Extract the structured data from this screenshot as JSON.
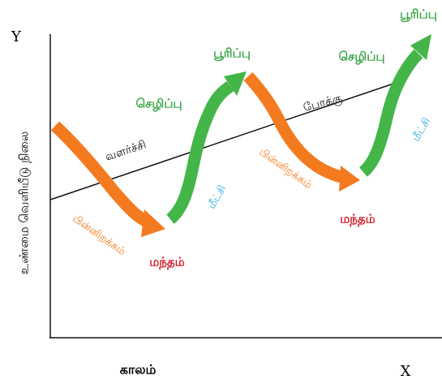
{
  "axes": {
    "y_letter": "Y",
    "x_letter": "X",
    "x_label": "காலம்",
    "y_label": "உண்மை வெளியீடு நிலை"
  },
  "labels": [
    {
      "text": "வளர்ச்சி"
    },
    {
      "text": "போக்கு"
    },
    {
      "text": "பின்னிறக்கம்"
    },
    {
      "text": "மந்தம்"
    },
    {
      "text": "மீட்சி"
    },
    {
      "text": "செழிப்பு"
    },
    {
      "text": "பூரிப்பு"
    },
    {
      "text": "பின்னிறக்கம்"
    },
    {
      "text": "மந்தம்"
    },
    {
      "text": "மீட்சி"
    },
    {
      "text": "செழிப்பு"
    },
    {
      "text": "பூரிப்பு"
    }
  ]
}
